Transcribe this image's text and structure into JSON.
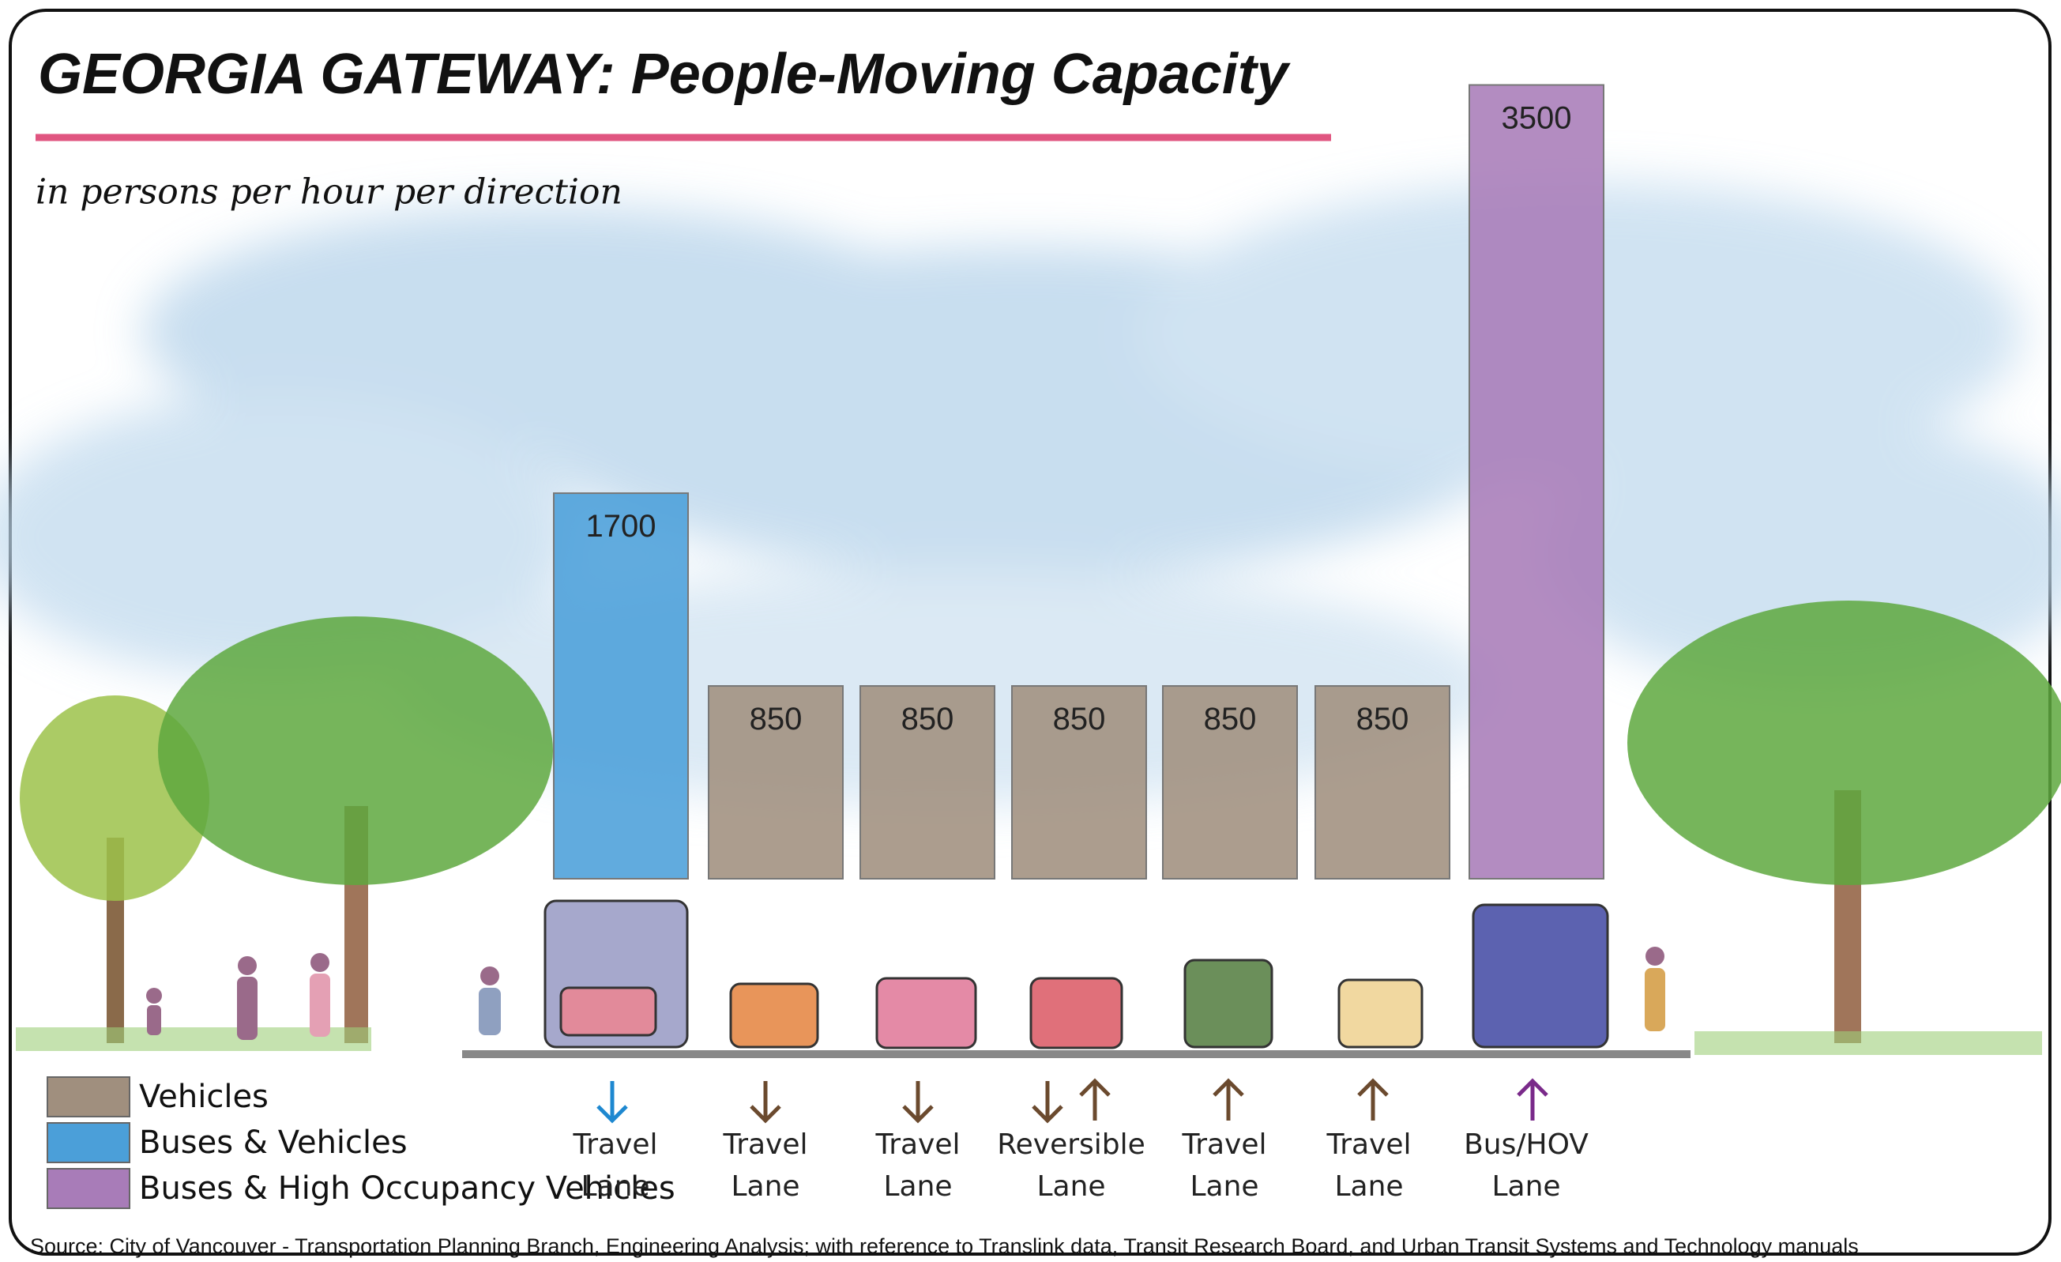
{
  "chart_data": {
    "type": "bar",
    "title": "GEORGIA GATEWAY: People-Moving Capacity",
    "subtitle": "in persons per hour per direction",
    "categories": [
      "Travel Lane",
      "Travel Lane",
      "Travel Lane",
      "Reversible Lane",
      "Travel Lane",
      "Travel Lane",
      "Bus/HOV Lane"
    ],
    "series": [
      {
        "name": "Vehicles",
        "color": "#a08f7e",
        "values": [
          null,
          850,
          850,
          850,
          850,
          850,
          null
        ]
      },
      {
        "name": "Buses & Vehicles",
        "color": "#4b9fd9",
        "values": [
          1700,
          null,
          null,
          null,
          null,
          null,
          null
        ]
      },
      {
        "name": "Buses & High Occupancy Vehicles",
        "color": "#a87cb8",
        "values": [
          null,
          null,
          null,
          null,
          null,
          null,
          3500
        ]
      }
    ],
    "source": "Source: City of Vancouver - Transportation Planning Branch, Engineering Analysis; with reference to Translink data, Transit Research Board, and Urban Transit Systems and Technology manuals"
  }
}
